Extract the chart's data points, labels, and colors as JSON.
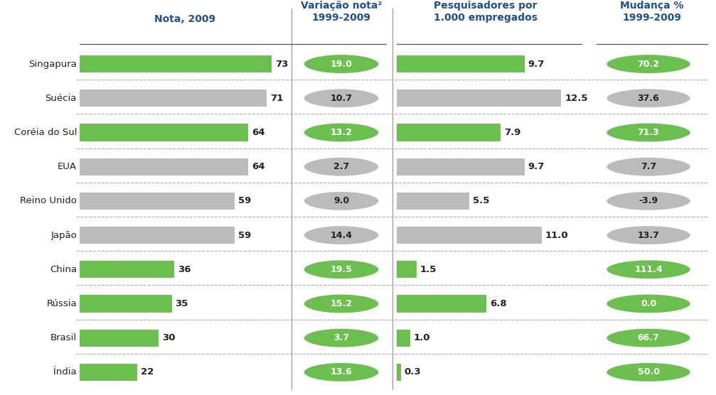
{
  "countries": [
    "Singapura",
    "Suécia",
    "Coréia do Sul",
    "EUA",
    "Reino Unido",
    "Japão",
    "China",
    "Rússia",
    "Brasil",
    "Índia"
  ],
  "nota_2009": [
    73,
    71,
    64,
    64,
    59,
    59,
    36,
    35,
    30,
    22
  ],
  "nota_max": 80,
  "variacao_nota": [
    19.0,
    10.7,
    13.2,
    2.7,
    9.0,
    14.4,
    19.5,
    15.2,
    3.7,
    13.6
  ],
  "pesquisadores": [
    9.7,
    12.5,
    7.9,
    9.7,
    5.5,
    11.0,
    1.5,
    6.8,
    1.0,
    0.3
  ],
  "pesquisadores_max": 13.5,
  "mudanca_pct": [
    70.2,
    37.6,
    71.3,
    7.7,
    -3.9,
    13.7,
    111.4,
    0.0,
    66.7,
    50.0
  ],
  "nota_green": [
    true,
    false,
    true,
    false,
    false,
    false,
    true,
    true,
    true,
    true
  ],
  "pesq_green": [
    true,
    false,
    true,
    false,
    false,
    false,
    true,
    true,
    true,
    true
  ],
  "var_green": [
    true,
    false,
    true,
    false,
    false,
    false,
    true,
    true,
    true,
    true
  ],
  "mud_green": [
    true,
    false,
    true,
    false,
    false,
    false,
    true,
    true,
    true,
    true
  ],
  "green_color": "#6BBF4E",
  "gray_color": "#BBBBBB",
  "col1_header": "Nota, 2009",
  "col2_header": "Variação nota²\n1999-2009",
  "col3_header": "Pesquisadores por\n1.000 empregados",
  "col4_header": "Mudança %\n1999-2009",
  "background_color": "#FFFFFF",
  "header_color": "#1F4E99",
  "text_color": "#222222"
}
